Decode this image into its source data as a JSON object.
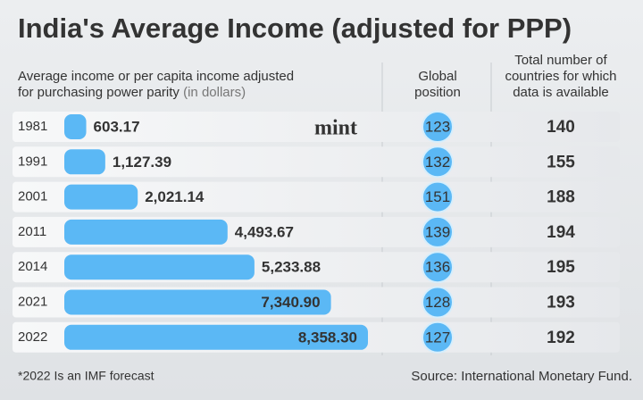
{
  "chart_data": {
    "type": "bar",
    "title": "India's Average Income (adjusted for PPP)",
    "subtitle_lines": [
      "Average income or per capita income adjusted",
      "for purchasing power parity"
    ],
    "unit_note": "(in dollars)",
    "categories": [
      "1981",
      "1991",
      "2001",
      "2011",
      "2014",
      "2021",
      "2022"
    ],
    "values": [
      603.17,
      1127.39,
      2021.14,
      4493.67,
      5233.88,
      7340.9,
      8358.3
    ],
    "value_labels": [
      "603.17",
      "1,127.39",
      "2,021.14",
      "4,493.67",
      "5,233.88",
      "7,340.90",
      "8,358.30"
    ],
    "color": "#5bb8f5",
    "columns": [
      {
        "header_lines": [
          "Global",
          "position"
        ],
        "values": [
          123,
          132,
          151,
          139,
          136,
          128,
          127
        ]
      },
      {
        "header_lines": [
          "Total number of",
          "countries for which",
          "data is available"
        ],
        "values": [
          140,
          155,
          188,
          194,
          195,
          193,
          192
        ]
      }
    ],
    "brand": "mint",
    "footnote": "*2022 Is an IMF forecast",
    "source": "Source: International Monetary Fund."
  }
}
